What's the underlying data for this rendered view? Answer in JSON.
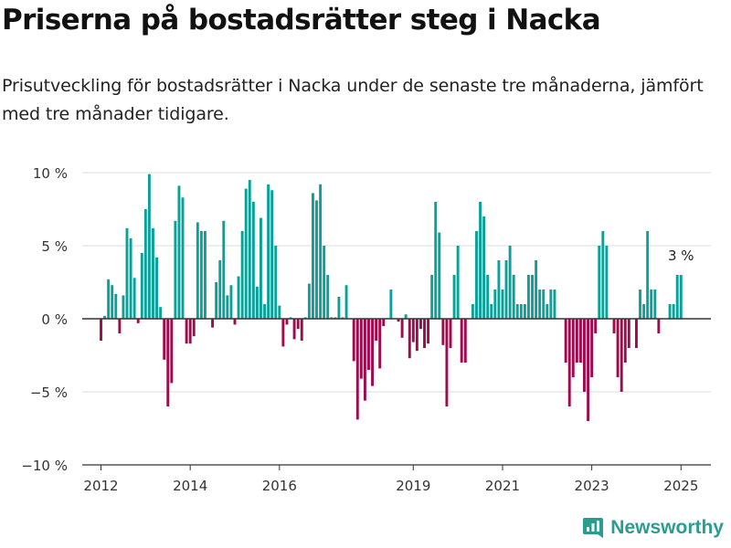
{
  "title": "Priserna på bostadsrätter steg i Nacka",
  "subtitle": "Prisutveckling för bostadsrätter i Nacka under de senaste tre månaderna, jämfört med tre månader tidigare.",
  "brand": {
    "name": "Newsworthy",
    "icon": "newsworthy-logo-icon"
  },
  "colors": {
    "positive": "#0ca198",
    "negative": "#9e0c4e",
    "grid": "#dddddd",
    "axis": "#333333"
  },
  "chart_data": {
    "type": "bar",
    "ylim": [
      -10,
      10
    ],
    "yticks": [
      -10,
      -5,
      0,
      5,
      10
    ],
    "ytick_labels": [
      "−10 %",
      "−5 %",
      "0 %",
      "5 %",
      "10 %"
    ],
    "xlim": [
      2011.58,
      2025.67
    ],
    "xticks": [
      2012,
      2014,
      2016,
      2019,
      2021,
      2023,
      2025
    ],
    "xtick_labels": [
      "2012",
      "2014",
      "2016",
      "2019",
      "2021",
      "2023",
      "2025"
    ],
    "grid": true,
    "annotation": {
      "text": "3 %",
      "x": 2025.0,
      "y": 3.0
    },
    "x": [
      2012.0,
      2012.083,
      2012.167,
      2012.25,
      2012.333,
      2012.417,
      2012.5,
      2012.583,
      2012.667,
      2012.75,
      2012.833,
      2012.917,
      2013.0,
      2013.083,
      2013.167,
      2013.25,
      2013.333,
      2013.417,
      2013.5,
      2013.583,
      2013.667,
      2013.75,
      2013.833,
      2013.917,
      2014.0,
      2014.083,
      2014.167,
      2014.25,
      2014.333,
      2014.417,
      2014.5,
      2014.583,
      2014.667,
      2014.75,
      2014.833,
      2014.917,
      2015.0,
      2015.083,
      2015.167,
      2015.25,
      2015.333,
      2015.417,
      2015.5,
      2015.583,
      2015.667,
      2015.75,
      2015.833,
      2015.917,
      2016.0,
      2016.083,
      2016.167,
      2016.25,
      2016.333,
      2016.417,
      2016.5,
      2016.583,
      2016.667,
      2016.75,
      2016.833,
      2016.917,
      2017.0,
      2017.083,
      2017.167,
      2017.25,
      2017.333,
      2017.417,
      2017.5,
      2017.583,
      2017.667,
      2017.75,
      2017.833,
      2017.917,
      2018.0,
      2018.083,
      2018.167,
      2018.25,
      2018.333,
      2018.417,
      2018.5,
      2018.583,
      2018.667,
      2018.75,
      2018.833,
      2018.917,
      2019.0,
      2019.083,
      2019.167,
      2019.25,
      2019.333,
      2019.417,
      2019.5,
      2019.583,
      2019.667,
      2019.75,
      2019.833,
      2019.917,
      2020.0,
      2020.083,
      2020.167,
      2020.25,
      2020.333,
      2020.417,
      2020.5,
      2020.583,
      2020.667,
      2020.75,
      2020.833,
      2020.917,
      2021.0,
      2021.083,
      2021.167,
      2021.25,
      2021.333,
      2021.417,
      2021.5,
      2021.583,
      2021.667,
      2021.75,
      2021.833,
      2021.917,
      2022.0,
      2022.083,
      2022.167,
      2022.25,
      2022.333,
      2022.417,
      2022.5,
      2022.583,
      2022.667,
      2022.75,
      2022.833,
      2022.917,
      2023.0,
      2023.083,
      2023.167,
      2023.25,
      2023.333,
      2023.417,
      2023.5,
      2023.583,
      2023.667,
      2023.75,
      2023.833,
      2023.917,
      2024.0,
      2024.083,
      2024.167,
      2024.25,
      2024.333,
      2024.417,
      2024.5,
      2024.583,
      2024.667,
      2024.75,
      2024.833,
      2024.917,
      2025.0
    ],
    "values": [
      -1.5,
      0.2,
      2.7,
      2.3,
      1.7,
      -1.0,
      1.6,
      6.2,
      5.5,
      2.8,
      -0.3,
      4.5,
      7.5,
      9.9,
      6.2,
      4.2,
      0.8,
      -2.8,
      -6.0,
      -4.4,
      6.7,
      9.1,
      8.3,
      -1.7,
      -1.7,
      -1.2,
      6.6,
      6.0,
      6.0,
      0.0,
      -0.6,
      2.5,
      4.0,
      6.7,
      1.6,
      2.3,
      -0.4,
      2.9,
      6.0,
      8.9,
      9.5,
      8.0,
      2.2,
      6.9,
      1.0,
      9.2,
      8.8,
      5.0,
      0.9,
      -1.9,
      -0.4,
      0.1,
      -1.4,
      -0.7,
      -1.5,
      0.1,
      2.4,
      8.6,
      8.1,
      9.2,
      5.0,
      3.0,
      0.1,
      0.1,
      1.5,
      0.1,
      2.3,
      0.0,
      -2.9,
      -6.9,
      -4.1,
      -5.6,
      -3.5,
      -4.6,
      -1.5,
      -3.4,
      -0.5,
      0.0,
      2.0,
      0.0,
      -0.2,
      -1.3,
      0.3,
      -2.7,
      -1.6,
      -2.2,
      -0.7,
      -2.0,
      -1.7,
      3.0,
      8.0,
      5.9,
      -1.8,
      -6.0,
      -2.0,
      3.0,
      5.0,
      -3.0,
      -3.0,
      0.0,
      1.0,
      6.0,
      8.0,
      7.0,
      3.0,
      1.0,
      2.0,
      4.0,
      2.0,
      4.0,
      5.0,
      3.0,
      1.0,
      1.0,
      1.0,
      3.0,
      3.0,
      4.0,
      2.0,
      2.0,
      1.0,
      2.0,
      2.0,
      0.0,
      0.0,
      -3.0,
      -6.0,
      -4.0,
      -3.0,
      -3.0,
      -5.0,
      -7.0,
      -4.0,
      -1.0,
      5.0,
      6.0,
      5.0,
      0.0,
      -1.0,
      -4.0,
      -5.0,
      -3.0,
      -2.0,
      0.0,
      -2.0,
      2.0,
      1.0,
      6.0,
      2.0,
      2.0,
      -1.0,
      0.0,
      0.0,
      1.0,
      1.0,
      3.0,
      3.0
    ]
  }
}
